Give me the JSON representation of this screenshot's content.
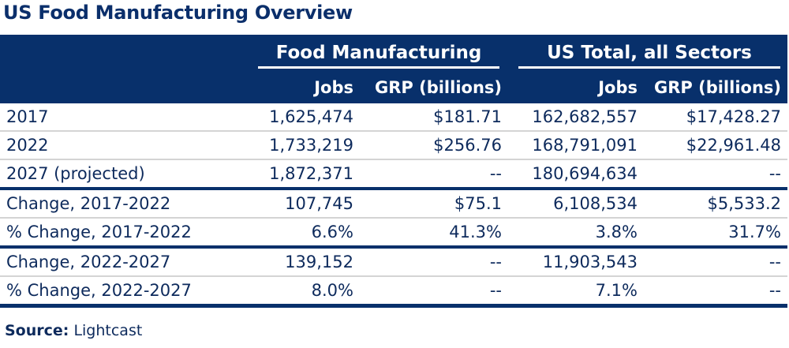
{
  "title": "US Food Manufacturing Overview",
  "groups": [
    "Food Manufacturing",
    "US Total, all Sectors"
  ],
  "subheaders": [
    "Jobs",
    "GRP (billions)",
    "Jobs",
    "GRP (billions)"
  ],
  "rows": [
    {
      "label": "2017",
      "values": [
        "1,625,474",
        "$181.71",
        "162,682,557",
        "$17,428.27"
      ]
    },
    {
      "label": "2022",
      "values": [
        "1,733,219",
        "$256.76",
        "168,791,091",
        "$22,961.48"
      ]
    },
    {
      "label": "2027 (projected)",
      "values": [
        "1,872,371",
        "--",
        "180,694,634",
        "--"
      ]
    },
    {
      "label": "Change, 2017-2022",
      "values": [
        "107,745",
        "$75.1",
        "6,108,534",
        "$5,533.2"
      ]
    },
    {
      "label": "% Change, 2017-2022",
      "values": [
        "6.6%",
        "41.3%",
        "3.8%",
        "31.7%"
      ]
    },
    {
      "label": "Change, 2022-2027",
      "values": [
        "139,152",
        "--",
        "11,903,543",
        "--"
      ]
    },
    {
      "label": "% Change, 2022-2027",
      "values": [
        "8.0%",
        "--",
        "7.1%",
        "--"
      ]
    }
  ],
  "source": {
    "label": "Source:",
    "value": "Lightcast"
  }
}
